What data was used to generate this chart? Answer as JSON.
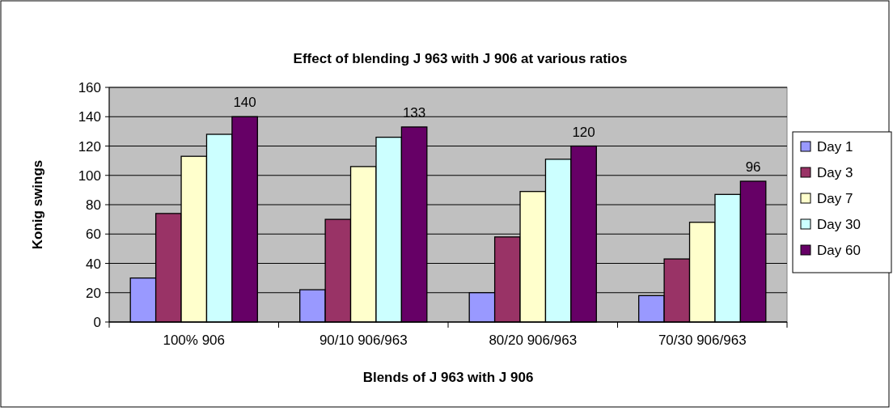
{
  "chart_data": {
    "type": "bar",
    "title": "Effect of blending J 963 with J 906 at various ratios",
    "xlabel": "Blends of J 963 with J 906",
    "ylabel": "Konig swings",
    "categories": [
      "100% 906",
      "90/10 906/963",
      "80/20 906/963",
      "70/30 906/963"
    ],
    "series": [
      {
        "name": "Day 1",
        "color": "#9999ff",
        "values": [
          30,
          22,
          20,
          18
        ]
      },
      {
        "name": "Day 3",
        "color": "#993366",
        "values": [
          74,
          70,
          58,
          43
        ]
      },
      {
        "name": "Day 7",
        "color": "#ffffcc",
        "values": [
          113,
          106,
          89,
          68
        ]
      },
      {
        "name": "Day 30",
        "color": "#ccffff",
        "values": [
          128,
          126,
          111,
          87
        ]
      },
      {
        "name": "Day 60",
        "color": "#660066",
        "values": [
          140,
          133,
          120,
          96
        ],
        "value_labels": [
          "140",
          "133",
          "120",
          "96"
        ]
      }
    ],
    "ylim": [
      0,
      160
    ],
    "yticks": [
      0,
      20,
      40,
      60,
      80,
      100,
      120,
      140,
      160
    ],
    "grid": "y",
    "legend": "right"
  }
}
